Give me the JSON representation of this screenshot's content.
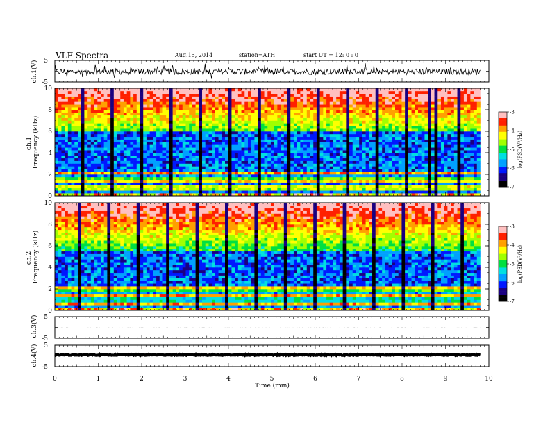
{
  "header": {
    "title": "VLF  Spectra",
    "date": "Aug.15, 2014",
    "station": "station=ATH",
    "start": "start  UT =   12: 0  : 0"
  },
  "colors": {
    "spectrogram_scale": [
      "#000000",
      "#1a0080",
      "#0018ff",
      "#00a0ff",
      "#00e0e0",
      "#00e040",
      "#a0ff00",
      "#ffff00",
      "#ffa000",
      "#ff2000",
      "#ffc0c0"
    ]
  },
  "chart_data": [
    {
      "type": "line",
      "panel": "ch1-waveform",
      "ylabel": "ch.1(V)",
      "ylim": [
        -5,
        5
      ],
      "yticks": [
        {
          "v": 5,
          "label": "5"
        },
        {
          "v": -5,
          "label": "-5"
        }
      ],
      "signal": {
        "baseline": -0.2,
        "noise_amplitude": 1.4,
        "xmax": 9.8
      }
    },
    {
      "type": "heatmap",
      "panel": "ch1-spectrogram",
      "ylabel": "ch.1\nFrequency  (kHz)",
      "ylim": [
        0,
        10
      ],
      "yticks": [
        "0",
        "2",
        "4",
        "6",
        "8",
        "10"
      ],
      "colorbar": {
        "label": "log(PSD(V²/Hz)",
        "ticks": [
          "-3",
          "-4",
          "-5",
          "-6",
          "-7"
        ],
        "range": [
          -7,
          -3
        ]
      },
      "xmax": 9.8
    },
    {
      "type": "heatmap",
      "panel": "ch2-spectrogram",
      "ylabel": "ch.2\nFrequency  (kHz)",
      "ylim": [
        0,
        10
      ],
      "yticks": [
        "0",
        "2",
        "4",
        "6",
        "8",
        "10"
      ],
      "colorbar": {
        "label": "log(PSD(V²/Hz)",
        "ticks": [
          "-3",
          "-4",
          "-5",
          "-6",
          "-7"
        ],
        "range": [
          -7,
          -3
        ]
      },
      "xmax": 9.8
    },
    {
      "type": "line",
      "panel": "ch3-waveform",
      "ylabel": "ch.3(V)",
      "ylim": [
        -5,
        5
      ],
      "yticks": [
        {
          "v": 5,
          "label": "5"
        },
        {
          "v": -5,
          "label": "-5"
        }
      ],
      "signal": {
        "baseline": -0.3,
        "noise_amplitude": 0.05,
        "xmax": 9.8
      }
    },
    {
      "type": "line",
      "panel": "ch4-waveform",
      "ylabel": "ch.4(V)",
      "ylim": [
        -5,
        5
      ],
      "yticks": [
        {
          "v": 5,
          "label": "5"
        },
        {
          "v": -5,
          "label": "-5"
        }
      ],
      "signal": {
        "baseline": 0.5,
        "noise_amplitude": 0.25,
        "xmax": 9.8
      }
    }
  ],
  "x_axis": {
    "label": "Time  (min)",
    "range": [
      0,
      10
    ],
    "ticks": [
      "0",
      "1",
      "2",
      "3",
      "4",
      "5",
      "6",
      "7",
      "8",
      "9",
      "10"
    ]
  }
}
